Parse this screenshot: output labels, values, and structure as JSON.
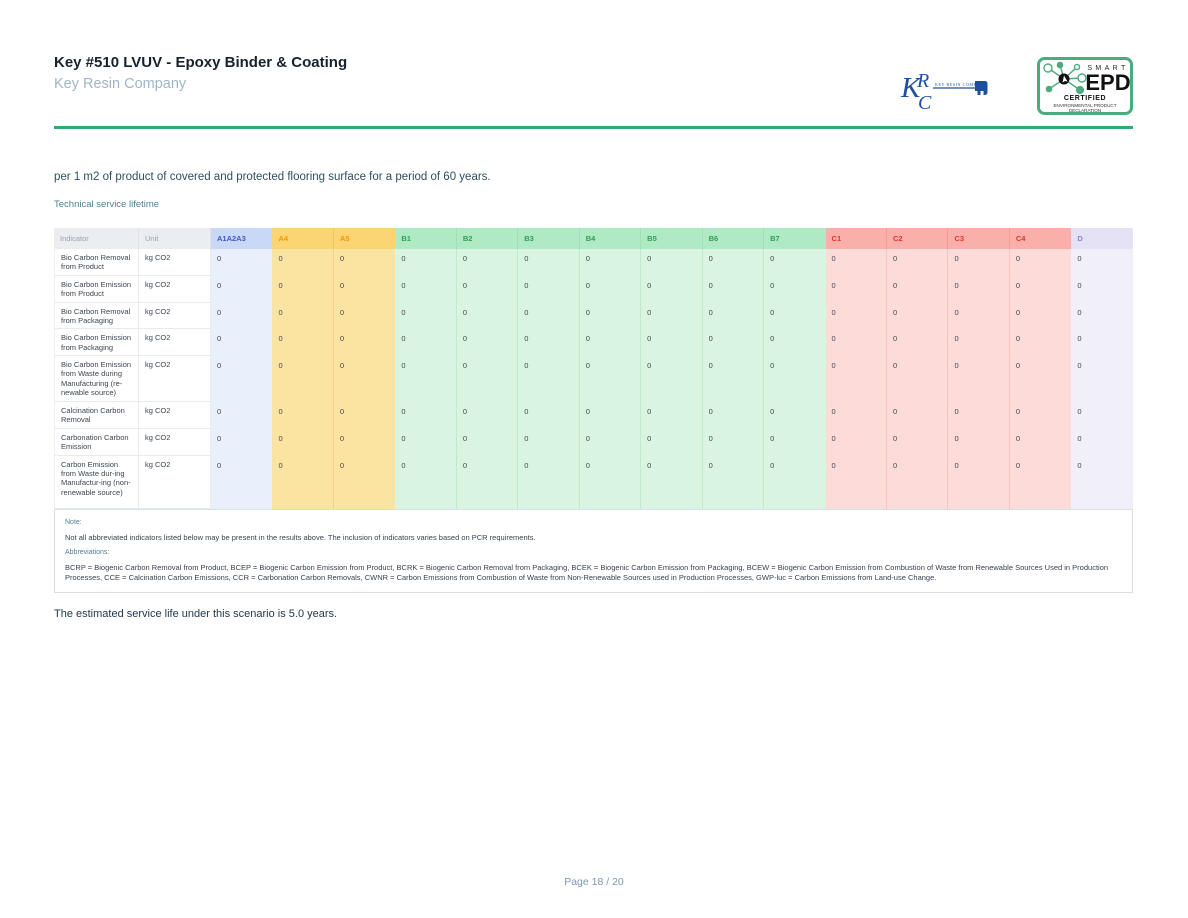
{
  "page": {
    "title": "Key #510 LVUV - Epoxy Binder & Coating",
    "company": "Key Resin Company",
    "footer": "Page 18 / 20"
  },
  "logos": {
    "krc": {
      "monogram_k": "K",
      "monogram_r": "R",
      "monogram_c": "C",
      "caption": "KEY RESIN COMPANY"
    },
    "epd": {
      "smart": "SMART",
      "epd": "EPD",
      "certified": "CERTIFIED",
      "line1": "ENVIRONMENTAL PRODUCT",
      "line2": "DECLARATION"
    }
  },
  "intro": "per 1 m2 of product of covered and protected flooring surface for a period of 60 years.",
  "section_label": "Technical service lifetime",
  "table": {
    "columns": [
      {
        "label": "Indicator",
        "group": "label"
      },
      {
        "label": "Unit",
        "group": "label"
      },
      {
        "label": "A1A2A3",
        "group": "a1"
      },
      {
        "label": "A4",
        "group": "a"
      },
      {
        "label": "A5",
        "group": "a"
      },
      {
        "label": "B1",
        "group": "b"
      },
      {
        "label": "B2",
        "group": "b"
      },
      {
        "label": "B3",
        "group": "b"
      },
      {
        "label": "B4",
        "group": "b"
      },
      {
        "label": "B5",
        "group": "b"
      },
      {
        "label": "B6",
        "group": "b"
      },
      {
        "label": "B7",
        "group": "b"
      },
      {
        "label": "C1",
        "group": "c"
      },
      {
        "label": "C2",
        "group": "c"
      },
      {
        "label": "C3",
        "group": "c"
      },
      {
        "label": "C4",
        "group": "c"
      },
      {
        "label": "D",
        "group": "d"
      }
    ],
    "rows": [
      {
        "indicator": "Bio Carbon Removal from Product",
        "unit": "kg CO2",
        "values": [
          "0",
          "0",
          "0",
          "0",
          "0",
          "0",
          "0",
          "0",
          "0",
          "0",
          "0",
          "0",
          "0",
          "0",
          "0"
        ]
      },
      {
        "indicator": "Bio Carbon Emission from Product",
        "unit": "kg CO2",
        "values": [
          "0",
          "0",
          "0",
          "0",
          "0",
          "0",
          "0",
          "0",
          "0",
          "0",
          "0",
          "0",
          "0",
          "0",
          "0"
        ]
      },
      {
        "indicator": "Bio Carbon Removal from Packaging",
        "unit": "kg CO2",
        "values": [
          "0",
          "0",
          "0",
          "0",
          "0",
          "0",
          "0",
          "0",
          "0",
          "0",
          "0",
          "0",
          "0",
          "0",
          "0"
        ]
      },
      {
        "indicator": "Bio Carbon Emission from Packaging",
        "unit": "kg CO2",
        "values": [
          "0",
          "0",
          "0",
          "0",
          "0",
          "0",
          "0",
          "0",
          "0",
          "0",
          "0",
          "0",
          "0",
          "0",
          "0"
        ]
      },
      {
        "indicator": "Bio Carbon Emission from Waste during Manufacturing (re-newable source)",
        "unit": "kg CO2",
        "values": [
          "0",
          "0",
          "0",
          "0",
          "0",
          "0",
          "0",
          "0",
          "0",
          "0",
          "0",
          "0",
          "0",
          "0",
          "0"
        ]
      },
      {
        "indicator": "Calcination Carbon Removal",
        "unit": "kg CO2",
        "values": [
          "0",
          "0",
          "0",
          "0",
          "0",
          "0",
          "0",
          "0",
          "0",
          "0",
          "0",
          "0",
          "0",
          "0",
          "0"
        ]
      },
      {
        "indicator": "Carbonation Carbon Emission",
        "unit": "kg CO2",
        "values": [
          "0",
          "0",
          "0",
          "0",
          "0",
          "0",
          "0",
          "0",
          "0",
          "0",
          "0",
          "0",
          "0",
          "0",
          "0"
        ]
      },
      {
        "indicator": "Carbon Emission from Waste dur-ing Manufactur-ing (non-renewable source)",
        "unit": "kg CO2",
        "values": [
          "0",
          "0",
          "0",
          "0",
          "0",
          "0",
          "0",
          "0",
          "0",
          "0",
          "0",
          "0",
          "0",
          "0",
          "0"
        ]
      }
    ]
  },
  "note": {
    "label": "Note:",
    "text": "Not all abbreviated indicators listed below may be present in the results above. The inclusion of indicators varies based on PCR requirements.",
    "abbr_label": "Abbreviations:",
    "abbr_text": "BCRP = Biogenic Carbon Removal from Product, BCEP = Biogenic Carbon Emission from Product, BCRK = Biogenic Carbon Removal from Packaging, BCEK = Biogenic Carbon Emission from Packaging, BCEW = Biogenic Carbon Emission from Combustion of Waste from Renewable Sources Used in Production Processes, CCE = Calcination Carbon Emissions, CCR = Carbonation Carbon Removals, CWNR = Carbon Emissions from Combustion of Waste from Non-Renewable Sources used in Production Processes, GWP-luc = Carbon Emissions from Land-use Change."
  },
  "service_life": "The estimated service life under this scenario is 5.0 years.",
  "colors": {
    "rule_green": "#35a873",
    "accent_teal": "#4e7f94",
    "label_header_bg": "#ebedf1",
    "a1a2a3": {
      "header": "#c8d8f6",
      "body": "#e9effb",
      "text": "#4059c9"
    },
    "a4a5": {
      "header": "#fbd473",
      "body": "#fbe3a2",
      "text": "#ef9b00"
    },
    "b": {
      "header": "#b0eac4",
      "body": "#daf4e2",
      "text": "#2f9e54"
    },
    "c": {
      "header": "#faafaa",
      "body": "#fcdbd9",
      "text": "#e5332f"
    },
    "d": {
      "header": "#e5e2f5",
      "body": "#f1eff9",
      "text": "#9082d6"
    },
    "krc_blue": "#1d4f9e",
    "epd_green": "#4cab7c"
  }
}
